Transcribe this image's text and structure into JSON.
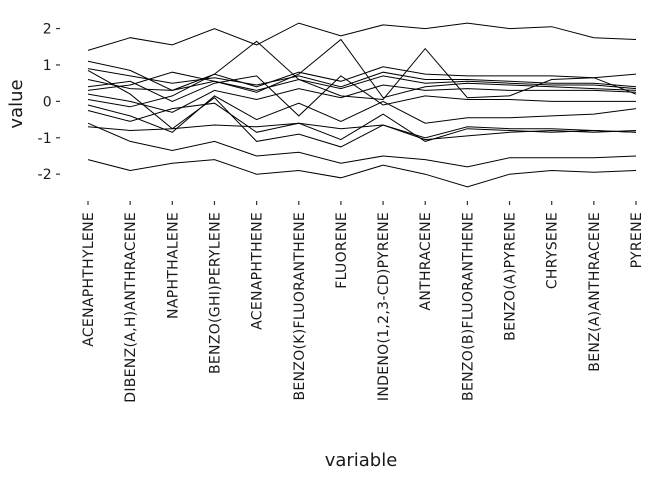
{
  "chart_data": {
    "type": "line",
    "title": "",
    "xlabel": "variable",
    "ylabel": "value",
    "ylim": [
      -2.6,
      2.4
    ],
    "yticks": [
      2,
      1,
      0,
      -1,
      -2
    ],
    "ytick_labels": [
      "2",
      "1",
      "0",
      "-1",
      "-2"
    ],
    "grid": false,
    "legend": "none",
    "categories": [
      "ACENAPHTHYLENE",
      "DIBENZ(A,H)ANTHRACENE",
      "NAPHTHALENE",
      "BENZO(GHI)PERYLENE",
      "ACENAPHTHENE",
      "BENZO(K)FLUORANTHENE",
      "FLUORENE",
      "INDENO(1,2,3-CD)PYRENE",
      "ANTHRACENE",
      "BENZO(B)FLUORANTHENE",
      "BENZO(A)PYRENE",
      "CHRYSENE",
      "BENZ(A)ANTHRACENE",
      "PYRENE"
    ],
    "series": [
      {
        "values": [
          1.4,
          1.75,
          1.55,
          2.0,
          1.55,
          2.15,
          1.8,
          2.1,
          2.0,
          2.15,
          2.0,
          2.05,
          1.75,
          1.7
        ]
      },
      {
        "values": [
          -1.6,
          -1.9,
          -1.7,
          -1.6,
          -2.0,
          -1.9,
          -2.1,
          -1.75,
          -2.0,
          -2.35,
          -2.0,
          -1.9,
          -1.95,
          -1.9
        ]
      },
      {
        "values": [
          -0.6,
          -1.1,
          -1.35,
          -1.1,
          -1.5,
          -1.4,
          -1.7,
          -1.5,
          -1.6,
          -1.8,
          -1.55,
          -1.55,
          -1.55,
          -1.5
        ]
      },
      {
        "values": [
          -0.7,
          -0.8,
          -0.75,
          -0.65,
          -0.7,
          -0.6,
          -0.75,
          -0.65,
          -1.0,
          -0.7,
          -0.75,
          -0.75,
          -0.8,
          -0.85
        ]
      },
      {
        "values": [
          0.85,
          0.2,
          -0.75,
          0.1,
          -1.1,
          -0.9,
          -1.25,
          -0.65,
          -1.05,
          -0.95,
          -0.85,
          -0.8,
          -0.85,
          -0.8
        ]
      },
      {
        "values": [
          1.1,
          0.85,
          0.3,
          0.75,
          0.4,
          0.8,
          0.55,
          0.95,
          0.75,
          0.7,
          0.7,
          0.7,
          0.65,
          0.75
        ]
      },
      {
        "values": [
          0.9,
          0.7,
          0.5,
          0.65,
          0.45,
          0.7,
          0.4,
          0.8,
          0.6,
          0.6,
          0.55,
          0.5,
          0.5,
          0.4
        ]
      },
      {
        "values": [
          0.6,
          0.35,
          0.3,
          0.55,
          0.3,
          0.6,
          0.35,
          0.7,
          0.5,
          0.55,
          0.5,
          0.45,
          0.45,
          0.35
        ]
      },
      {
        "values": [
          0.2,
          0.0,
          -0.3,
          0.3,
          0.05,
          0.35,
          0.1,
          0.45,
          0.3,
          0.35,
          0.3,
          0.3,
          0.3,
          0.25
        ]
      },
      {
        "values": [
          -0.1,
          -0.4,
          -0.85,
          0.15,
          -0.5,
          -0.05,
          -0.55,
          0.0,
          -0.6,
          -0.45,
          -0.45,
          -0.4,
          -0.35,
          -0.2
        ]
      },
      {
        "values": [
          0.05,
          -0.15,
          0.15,
          0.75,
          1.65,
          0.6,
          0.15,
          0.05,
          1.45,
          0.1,
          0.15,
          0.6,
          0.65,
          0.2
        ]
      },
      {
        "values": [
          0.3,
          0.45,
          0.8,
          0.55,
          0.25,
          0.75,
          1.7,
          0.1,
          0.4,
          0.5,
          0.45,
          0.4,
          0.35,
          0.3
        ]
      },
      {
        "values": [
          0.4,
          0.55,
          0.0,
          0.5,
          0.7,
          -0.4,
          0.7,
          -0.1,
          0.15,
          0.05,
          0.05,
          0.0,
          0.0,
          0.0
        ]
      },
      {
        "values": [
          -0.25,
          -0.55,
          -0.2,
          -0.05,
          -0.85,
          -0.6,
          -1.05,
          -0.35,
          -1.1,
          -0.75,
          -0.8,
          -0.85,
          -0.8,
          -0.85
        ]
      }
    ]
  }
}
